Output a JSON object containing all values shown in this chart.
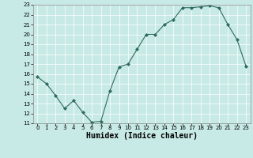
{
  "x": [
    0,
    1,
    2,
    3,
    4,
    5,
    6,
    7,
    8,
    9,
    10,
    11,
    12,
    13,
    14,
    15,
    16,
    17,
    18,
    19,
    20,
    21,
    22,
    23
  ],
  "y": [
    15.7,
    15.0,
    13.8,
    12.5,
    13.3,
    12.1,
    11.1,
    11.2,
    14.3,
    16.7,
    17.0,
    18.5,
    20.0,
    20.0,
    21.0,
    21.5,
    22.7,
    22.7,
    22.8,
    22.9,
    22.7,
    21.0,
    19.5,
    16.8
  ],
  "line_color": "#2d6b5e",
  "marker": "D",
  "marker_size": 2,
  "bg_color": "#c8eae6",
  "grid_color": "#ffffff",
  "xlabel": "Humidex (Indice chaleur)",
  "xlim": [
    -0.5,
    23.5
  ],
  "ylim": [
    11,
    23
  ],
  "yticks": [
    11,
    12,
    13,
    14,
    15,
    16,
    17,
    18,
    19,
    20,
    21,
    22,
    23
  ],
  "xticks": [
    0,
    1,
    2,
    3,
    4,
    5,
    6,
    7,
    8,
    9,
    10,
    11,
    12,
    13,
    14,
    15,
    16,
    17,
    18,
    19,
    20,
    21,
    22,
    23
  ],
  "label_fontsize": 7,
  "tick_fontsize": 5
}
